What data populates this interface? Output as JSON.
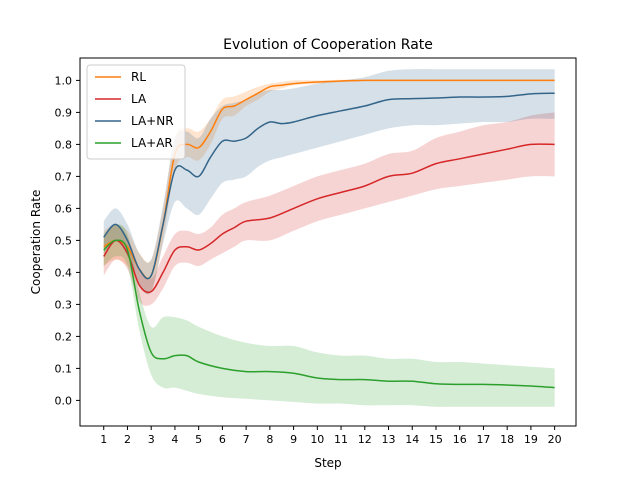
{
  "chart_data": {
    "type": "line",
    "title": "Evolution of Cooperation Rate",
    "xlabel": "Step",
    "ylabel": "Cooperation Rate",
    "xlim": [
      0.0,
      20.9
    ],
    "ylim": [
      -0.08,
      1.07
    ],
    "x_ticks": [
      1,
      2,
      3,
      4,
      5,
      6,
      7,
      8,
      9,
      10,
      11,
      12,
      13,
      14,
      15,
      16,
      17,
      18,
      19,
      20
    ],
    "y_ticks": [
      0.0,
      0.1,
      0.2,
      0.3,
      0.4,
      0.5,
      0.6,
      0.7,
      0.8,
      0.9,
      1.0
    ],
    "grid": false,
    "legend_position": "top-left",
    "series": [
      {
        "name": "RL",
        "color": "#ff7f0e",
        "x": [
          1,
          1.5,
          2,
          2.5,
          3,
          3.5,
          4,
          4.5,
          5,
          5.5,
          6,
          6.5,
          7,
          7.5,
          8,
          8.5,
          9,
          10,
          11,
          12,
          13,
          14,
          15,
          16,
          17,
          18,
          19,
          20
        ],
        "values": [
          0.48,
          0.5,
          0.48,
          0.41,
          0.39,
          0.55,
          0.77,
          0.8,
          0.79,
          0.84,
          0.91,
          0.92,
          0.94,
          0.96,
          0.98,
          0.985,
          0.99,
          0.995,
          0.998,
          1.0,
          1.0,
          1.0,
          1.0,
          1.0,
          1.0,
          1.0,
          1.0,
          1.0
        ],
        "lower": [
          0.42,
          0.44,
          0.42,
          0.36,
          0.34,
          0.5,
          0.72,
          0.76,
          0.75,
          0.8,
          0.88,
          0.89,
          0.92,
          0.94,
          0.965,
          0.975,
          0.985,
          0.99,
          0.995,
          0.998,
          0.998,
          0.998,
          0.998,
          0.998,
          0.998,
          0.998,
          0.998,
          0.998
        ],
        "upper": [
          0.53,
          0.55,
          0.53,
          0.46,
          0.44,
          0.6,
          0.82,
          0.85,
          0.84,
          0.88,
          0.94,
          0.95,
          0.965,
          0.98,
          0.99,
          0.995,
          1.0,
          1.0,
          1.002,
          1.003,
          1.003,
          1.003,
          1.003,
          1.003,
          1.003,
          1.003,
          1.003,
          1.003
        ]
      },
      {
        "name": "LA",
        "color": "#d62728",
        "x": [
          1,
          1.5,
          2,
          2.5,
          3,
          3.5,
          4,
          4.5,
          5,
          5.5,
          6,
          6.5,
          7,
          8,
          9,
          10,
          11,
          12,
          13,
          14,
          15,
          16,
          17,
          18,
          19,
          20
        ],
        "values": [
          0.45,
          0.5,
          0.46,
          0.36,
          0.34,
          0.4,
          0.47,
          0.48,
          0.47,
          0.49,
          0.52,
          0.54,
          0.56,
          0.57,
          0.6,
          0.63,
          0.65,
          0.67,
          0.7,
          0.71,
          0.74,
          0.755,
          0.77,
          0.785,
          0.8,
          0.8
        ],
        "lower": [
          0.39,
          0.44,
          0.41,
          0.31,
          0.3,
          0.35,
          0.42,
          0.43,
          0.42,
          0.44,
          0.46,
          0.48,
          0.5,
          0.5,
          0.53,
          0.56,
          0.58,
          0.6,
          0.62,
          0.64,
          0.66,
          0.67,
          0.68,
          0.69,
          0.7,
          0.7
        ],
        "upper": [
          0.51,
          0.55,
          0.51,
          0.41,
          0.38,
          0.45,
          0.52,
          0.53,
          0.52,
          0.54,
          0.58,
          0.6,
          0.62,
          0.64,
          0.67,
          0.7,
          0.72,
          0.74,
          0.77,
          0.78,
          0.82,
          0.84,
          0.86,
          0.87,
          0.89,
          0.9
        ]
      },
      {
        "name": "LA+NR",
        "color": "#33658a",
        "x": [
          1,
          1.5,
          2,
          2.5,
          3,
          3.5,
          4,
          4.5,
          5,
          5.5,
          6,
          6.5,
          7,
          7.5,
          8,
          8.5,
          9,
          10,
          11,
          12,
          13,
          14,
          15,
          16,
          17,
          18,
          19,
          20
        ],
        "values": [
          0.51,
          0.55,
          0.5,
          0.41,
          0.39,
          0.55,
          0.72,
          0.72,
          0.7,
          0.76,
          0.81,
          0.81,
          0.82,
          0.85,
          0.87,
          0.865,
          0.87,
          0.89,
          0.905,
          0.92,
          0.94,
          0.943,
          0.945,
          0.948,
          0.948,
          0.95,
          0.958,
          0.96
        ],
        "lower": [
          0.46,
          0.5,
          0.45,
          0.36,
          0.34,
          0.49,
          0.62,
          0.6,
          0.58,
          0.63,
          0.68,
          0.69,
          0.7,
          0.73,
          0.75,
          0.76,
          0.77,
          0.79,
          0.81,
          0.83,
          0.85,
          0.86,
          0.86,
          0.865,
          0.87,
          0.87,
          0.88,
          0.88
        ],
        "upper": [
          0.56,
          0.6,
          0.55,
          0.46,
          0.44,
          0.61,
          0.82,
          0.84,
          0.82,
          0.88,
          0.92,
          0.93,
          0.94,
          0.96,
          0.97,
          0.97,
          0.975,
          0.99,
          1.0,
          1.01,
          1.03,
          1.035,
          1.035,
          1.035,
          1.035,
          1.035,
          1.035,
          1.035
        ]
      },
      {
        "name": "LA+AR",
        "color": "#2ca02c",
        "x": [
          1,
          1.5,
          2,
          2.5,
          3,
          3.5,
          4,
          4.5,
          5,
          6,
          7,
          8,
          9,
          10,
          11,
          12,
          13,
          14,
          15,
          16,
          17,
          18,
          19,
          20
        ],
        "values": [
          0.47,
          0.5,
          0.47,
          0.28,
          0.15,
          0.13,
          0.14,
          0.14,
          0.12,
          0.1,
          0.09,
          0.09,
          0.085,
          0.07,
          0.065,
          0.065,
          0.06,
          0.06,
          0.052,
          0.05,
          0.05,
          0.048,
          0.045,
          0.04
        ],
        "lower": [
          0.42,
          0.45,
          0.42,
          0.22,
          0.08,
          0.04,
          0.04,
          0.03,
          0.02,
          0.01,
          0.005,
          0.0,
          -0.005,
          -0.01,
          -0.01,
          -0.015,
          -0.015,
          -0.015,
          -0.02,
          -0.02,
          -0.02,
          -0.02,
          -0.02,
          -0.02
        ],
        "upper": [
          0.52,
          0.55,
          0.52,
          0.34,
          0.23,
          0.26,
          0.26,
          0.25,
          0.23,
          0.2,
          0.18,
          0.17,
          0.17,
          0.15,
          0.14,
          0.14,
          0.13,
          0.13,
          0.12,
          0.12,
          0.115,
          0.11,
          0.105,
          0.1
        ]
      }
    ]
  }
}
